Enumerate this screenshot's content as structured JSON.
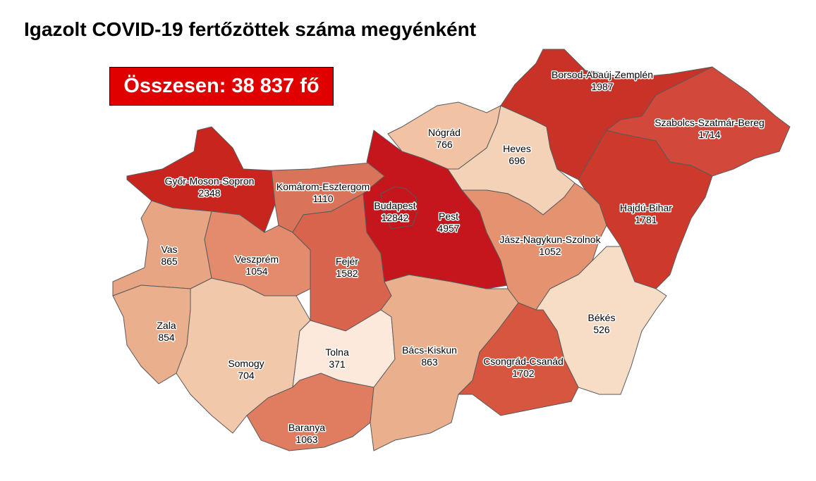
{
  "title": "Igazolt COVID-19 fertőzöttek száma megyénként",
  "total_label": "Összesen: 38 837 fő",
  "counties": [
    {
      "id": "gyor",
      "name": "Győr-Moson-Sopron",
      "value": "2348",
      "color": "#c9251f"
    },
    {
      "id": "komarom",
      "name": "Komárom-Esztergom",
      "value": "1110",
      "color": "#d9735a"
    },
    {
      "id": "vas",
      "name": "Vas",
      "value": "865",
      "color": "#e8a583"
    },
    {
      "id": "zala",
      "name": "Zala",
      "value": "854",
      "color": "#eaaf8d"
    },
    {
      "id": "veszprem",
      "name": "Veszprém",
      "value": "1054",
      "color": "#e48b6d"
    },
    {
      "id": "fejer",
      "name": "Fejér",
      "value": "1582",
      "color": "#d9644e"
    },
    {
      "id": "somogy",
      "name": "Somogy",
      "value": "704",
      "color": "#f2c8ab"
    },
    {
      "id": "tolna",
      "name": "Tolna",
      "value": "371",
      "color": "#fde9db"
    },
    {
      "id": "baranya",
      "name": "Baranya",
      "value": "1063",
      "color": "#e07d60"
    },
    {
      "id": "bacs",
      "name": "Bács-Kiskun",
      "value": "863",
      "color": "#eab08e"
    },
    {
      "id": "pest",
      "name": "Pest",
      "value": "4957",
      "color": "#c4161c"
    },
    {
      "id": "budapest",
      "name": "Budapest",
      "value": "12842",
      "color": "#c4161c"
    },
    {
      "id": "nograd",
      "name": "Nógrád",
      "value": "766",
      "color": "#f1c2a4"
    },
    {
      "id": "heves",
      "name": "Heves",
      "value": "696",
      "color": "#f4d2b8"
    },
    {
      "id": "borsod",
      "name": "Borsod-Abaúj-Zemplén",
      "value": "1987",
      "color": "#c93226"
    },
    {
      "id": "szabolcs",
      "name": "Szabolcs-Szatmár-Bereg",
      "value": "1714",
      "color": "#d2483a"
    },
    {
      "id": "hajdu",
      "name": "Hajdú-Bihar",
      "value": "1781",
      "color": "#cd3a2b"
    },
    {
      "id": "jasz",
      "name": "Jász-Nagykun-Szolnok",
      "value": "1052",
      "color": "#e59270"
    },
    {
      "id": "bekes",
      "name": "Békés",
      "value": "526",
      "color": "#f7dcc6"
    },
    {
      "id": "csongrad",
      "name": "Csongrád-Csanád",
      "value": "1702",
      "color": "#d65640"
    }
  ]
}
